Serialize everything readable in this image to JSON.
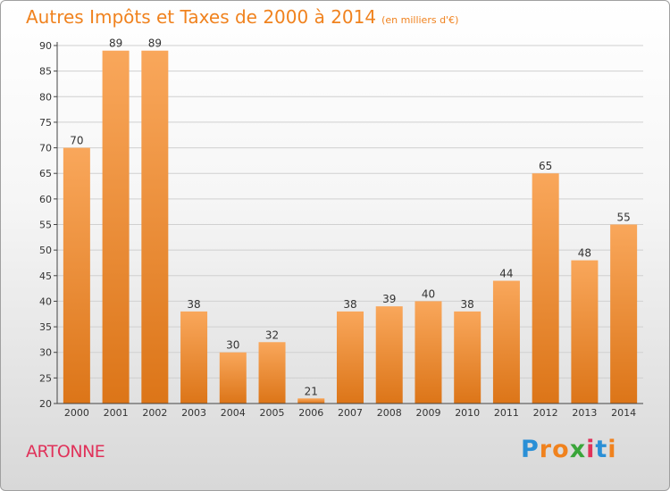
{
  "header": {
    "title": "Autres Impôts et Taxes de 2000 à 2014",
    "unit": "(en milliers d'€)"
  },
  "footer": {
    "commune": "ARTONNE",
    "brand": "Proxiti",
    "brand_letters": [
      "P",
      "r",
      "o",
      "x",
      "i",
      "t",
      "i"
    ],
    "brand_colors": [
      "#2a8fd6",
      "#f0821e",
      "#f0821e",
      "#3aa53a",
      "#e0325a",
      "#2a8fd6",
      "#f0821e"
    ]
  },
  "colors": {
    "bar_top": "#f9a75b",
    "bar_bottom": "#dc7518",
    "title": "#f0821e",
    "commune": "#e0325a",
    "grid": "#d0d0d0"
  },
  "chart_data": {
    "type": "bar",
    "title": "Autres Impôts et Taxes de 2000 à 2014",
    "subtitle": "(en milliers d'€)",
    "xlabel": "",
    "ylabel": "",
    "categories": [
      "2000",
      "2001",
      "2002",
      "2003",
      "2004",
      "2005",
      "2006",
      "2007",
      "2008",
      "2009",
      "2010",
      "2011",
      "2012",
      "2013",
      "2014"
    ],
    "values": [
      70,
      89,
      89,
      38,
      30,
      32,
      21,
      38,
      39,
      40,
      38,
      44,
      65,
      48,
      55
    ],
    "ylim": [
      20,
      90
    ],
    "yticks": [
      20,
      25,
      30,
      35,
      40,
      45,
      50,
      55,
      60,
      65,
      70,
      75,
      80,
      85,
      90
    ],
    "grid": true,
    "data_labels": true
  }
}
